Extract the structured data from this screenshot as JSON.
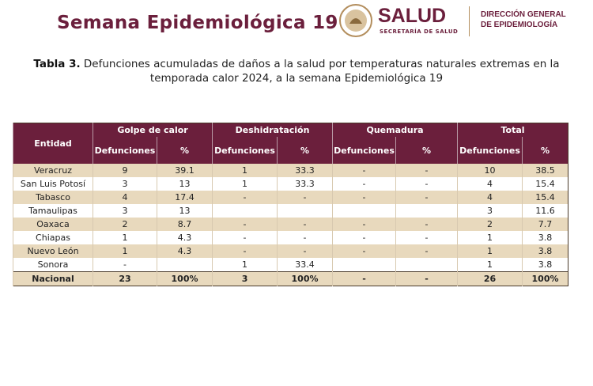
{
  "header": {
    "title": "Semana Epidemiológica 19",
    "logo": {
      "name": "SALUD",
      "subtitle": "SECRETARÍA DE SALUD",
      "department": [
        "DIRECCIÓN GENERAL",
        "DE EPIDEMIOLOGÍA"
      ]
    }
  },
  "caption": {
    "label": "Tabla 3.",
    "text": " Defunciones acumuladas de daños a la salud por temperaturas naturales extremas en la temporada calor 2024, a la semana Epidemiológica 19"
  },
  "table": {
    "entity_header": "Entidad",
    "groups": [
      "Golpe de calor",
      "Deshidratación",
      "Quemadura",
      "Total"
    ],
    "subheaders": [
      "Defunciones",
      "%"
    ],
    "rows": [
      [
        "Veracruz",
        "9",
        "39.1",
        "1",
        "33.3",
        "-",
        "-",
        "10",
        "38.5"
      ],
      [
        "San Luis Potosí",
        "3",
        "13",
        "1",
        "33.3",
        "-",
        "-",
        "4",
        "15.4"
      ],
      [
        "Tabasco",
        "4",
        "17.4",
        "-",
        "-",
        "-",
        "-",
        "4",
        "15.4"
      ],
      [
        "Tamaulipas",
        "3",
        "13",
        null,
        null,
        null,
        null,
        "3",
        "11.6"
      ],
      [
        "Oaxaca",
        "2",
        "8.7",
        "-",
        "-",
        "-",
        "-",
        "2",
        "7.7"
      ],
      [
        "Chiapas",
        "1",
        "4.3",
        "-",
        "-",
        "-",
        "-",
        "1",
        "3.8"
      ],
      [
        "Nuevo León",
        "1",
        "4.3",
        "-",
        "-",
        "-",
        "-",
        "1",
        "3.8"
      ],
      [
        "Sonora",
        "-",
        null,
        "1",
        "33.4",
        null,
        null,
        "1",
        "3.8"
      ]
    ],
    "total": [
      "Nacional",
      "23",
      "100%",
      "3",
      "100%",
      "-",
      "-",
      "26",
      "100%"
    ]
  }
}
